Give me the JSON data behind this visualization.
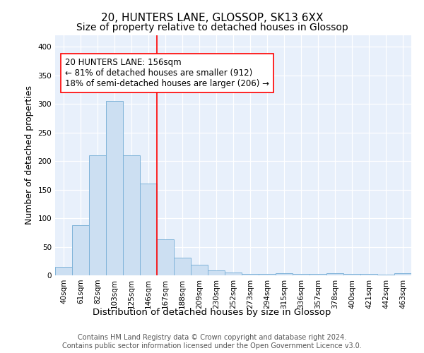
{
  "title1": "20, HUNTERS LANE, GLOSSOP, SK13 6XX",
  "title2": "Size of property relative to detached houses in Glossop",
  "xlabel": "Distribution of detached houses by size in Glossop",
  "ylabel": "Number of detached properties",
  "categories": [
    "40sqm",
    "61sqm",
    "82sqm",
    "103sqm",
    "125sqm",
    "146sqm",
    "167sqm",
    "188sqm",
    "209sqm",
    "230sqm",
    "252sqm",
    "273sqm",
    "294sqm",
    "315sqm",
    "336sqm",
    "357sqm",
    "378sqm",
    "400sqm",
    "421sqm",
    "442sqm",
    "463sqm"
  ],
  "values": [
    15,
    88,
    210,
    305,
    210,
    160,
    63,
    31,
    19,
    9,
    5,
    3,
    2,
    4,
    3,
    3,
    4,
    3,
    3,
    1,
    4
  ],
  "bar_color": "#ccdff2",
  "bar_edge_color": "#7fb3d9",
  "bar_width": 1.0,
  "vline_x": 5.5,
  "vline_color": "red",
  "annotation_text": "20 HUNTERS LANE: 156sqm\n← 81% of detached houses are smaller (912)\n18% of semi-detached houses are larger (206) →",
  "annotation_box_color": "white",
  "annotation_box_edge": "red",
  "ylim": [
    0,
    420
  ],
  "yticks": [
    0,
    50,
    100,
    150,
    200,
    250,
    300,
    350,
    400
  ],
  "footer": "Contains HM Land Registry data © Crown copyright and database right 2024.\nContains public sector information licensed under the Open Government Licence v3.0.",
  "bg_color": "#e8f0fb",
  "grid_color": "white",
  "title1_fontsize": 11,
  "title2_fontsize": 10,
  "xlabel_fontsize": 9.5,
  "ylabel_fontsize": 9,
  "tick_fontsize": 7.5,
  "annotation_fontsize": 8.5,
  "footer_fontsize": 7
}
